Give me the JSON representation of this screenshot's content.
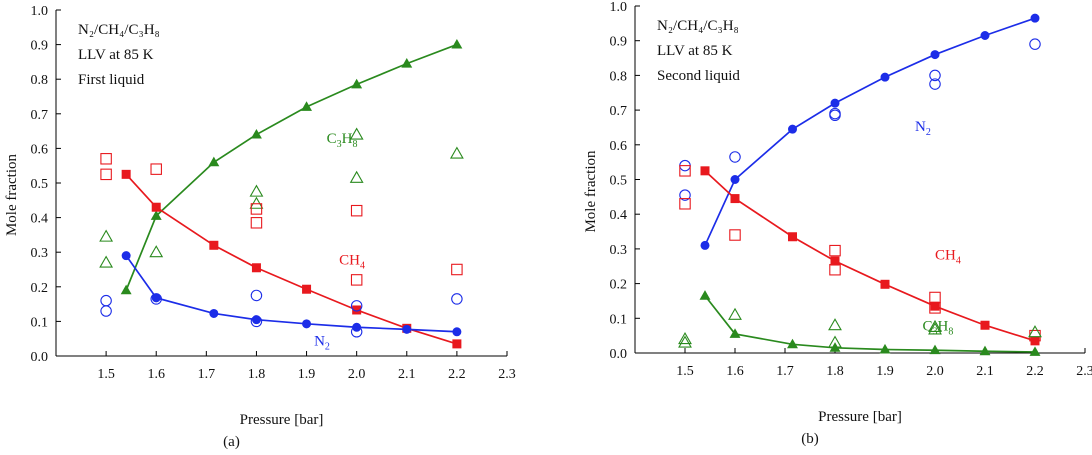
{
  "figure": {
    "panel_labels": [
      "(a)",
      "(b)"
    ]
  },
  "chart_data": [
    {
      "type": "line",
      "panel": "(a)",
      "title_lines": [
        "N₂/CH₄/C₃H₈",
        "LLV at 85 K",
        "First liquid"
      ],
      "xlabel": "Pressure [bar]",
      "ylabel": "Mole fraction",
      "xlim": [
        1.4,
        2.3
      ],
      "ylim": [
        0.0,
        1.0
      ],
      "xticks": [
        1.5,
        1.6,
        1.7,
        1.8,
        1.9,
        2.0,
        2.1,
        2.2,
        2.3
      ],
      "yticks": [
        0.0,
        0.1,
        0.2,
        0.3,
        0.4,
        0.5,
        0.6,
        0.7,
        0.8,
        0.9,
        1.0
      ],
      "series": [
        {
          "name": "C3H8",
          "label_main": "C",
          "label_sub1": "3",
          "label_mid": "H",
          "label_sub2": "8",
          "color": "#2a8a1e",
          "marker": "triangle",
          "x": [
            1.54,
            1.6,
            1.715,
            1.8,
            1.9,
            2.0,
            2.1,
            2.2
          ],
          "y": [
            0.19,
            0.405,
            0.56,
            0.64,
            0.72,
            0.785,
            0.845,
            0.9
          ]
        },
        {
          "name": "CH4",
          "label_main": "CH",
          "label_sub1": "4",
          "color": "#e8191e",
          "marker": "square",
          "x": [
            1.54,
            1.6,
            1.715,
            1.8,
            1.9,
            2.0,
            2.1,
            2.2
          ],
          "y": [
            0.525,
            0.43,
            0.32,
            0.255,
            0.193,
            0.133,
            0.08,
            0.035
          ]
        },
        {
          "name": "N2",
          "label_main": "N",
          "label_sub1": "2",
          "color": "#1c2de8",
          "marker": "circle",
          "x": [
            1.54,
            1.6,
            1.715,
            1.8,
            1.9,
            2.0,
            2.1,
            2.2
          ],
          "y": [
            0.29,
            0.168,
            0.123,
            0.105,
            0.093,
            0.083,
            0.077,
            0.07
          ]
        }
      ],
      "experimental": [
        {
          "name": "C3H8 exp",
          "color": "#2a8a1e",
          "marker": "triangle",
          "x": [
            1.5,
            1.5,
            1.6,
            1.8,
            1.8,
            2.0,
            2.0,
            2.2
          ],
          "y": [
            0.345,
            0.27,
            0.3,
            0.475,
            0.44,
            0.64,
            0.515,
            0.585
          ]
        },
        {
          "name": "CH4 exp",
          "color": "#e8191e",
          "marker": "square",
          "x": [
            1.5,
            1.5,
            1.6,
            1.8,
            1.8,
            2.0,
            2.0,
            2.2
          ],
          "y": [
            0.57,
            0.525,
            0.54,
            0.425,
            0.385,
            0.42,
            0.22,
            0.25
          ]
        },
        {
          "name": "N2 exp",
          "color": "#1c2de8",
          "marker": "circle",
          "x": [
            1.5,
            1.5,
            1.6,
            1.8,
            1.8,
            2.0,
            2.0,
            2.2
          ],
          "y": [
            0.16,
            0.13,
            0.165,
            0.175,
            0.1,
            0.145,
            0.07,
            0.165
          ]
        }
      ],
      "annotations": [
        {
          "series": "C3H8",
          "x": 1.94,
          "y": 0.615
        },
        {
          "series": "CH4",
          "x": 1.965,
          "y": 0.265
        },
        {
          "series": "N2",
          "x": 1.915,
          "y": 0.03
        }
      ]
    },
    {
      "type": "line",
      "panel": "(b)",
      "title_lines": [
        "N₂/CH₄/C₃H₈",
        "LLV at 85 K",
        "Second liquid"
      ],
      "xlabel": "Pressure [bar]",
      "ylabel": "Mole fraction",
      "xlim": [
        1.4,
        2.3
      ],
      "ylim": [
        0.0,
        1.0
      ],
      "xticks": [
        1.5,
        1.6,
        1.7,
        1.8,
        1.9,
        2.0,
        2.1,
        2.2,
        2.3
      ],
      "yticks": [
        0.0,
        0.1,
        0.2,
        0.3,
        0.4,
        0.5,
        0.6,
        0.7,
        0.8,
        0.9,
        1.0
      ],
      "series": [
        {
          "name": "N2",
          "label_main": "N",
          "label_sub1": "2",
          "color": "#1c2de8",
          "marker": "circle",
          "x": [
            1.54,
            1.6,
            1.715,
            1.8,
            1.9,
            2.0,
            2.1,
            2.2
          ],
          "y": [
            0.31,
            0.5,
            0.645,
            0.72,
            0.795,
            0.86,
            0.915,
            0.965
          ]
        },
        {
          "name": "CH4",
          "label_main": "CH",
          "label_sub1": "4",
          "color": "#e8191e",
          "marker": "square",
          "x": [
            1.54,
            1.6,
            1.715,
            1.8,
            1.9,
            2.0,
            2.1,
            2.2
          ],
          "y": [
            0.525,
            0.445,
            0.335,
            0.265,
            0.198,
            0.135,
            0.08,
            0.035
          ]
        },
        {
          "name": "C3H8",
          "label_main": "C",
          "label_sub1": "3",
          "label_mid": "H",
          "label_sub2": "8",
          "color": "#2a8a1e",
          "marker": "triangle",
          "x": [
            1.54,
            1.6,
            1.715,
            1.8,
            1.9,
            2.0,
            2.1,
            2.2
          ],
          "y": [
            0.165,
            0.055,
            0.025,
            0.015,
            0.01,
            0.008,
            0.005,
            0.003
          ]
        }
      ],
      "experimental": [
        {
          "name": "N2 exp",
          "color": "#1c2de8",
          "marker": "circle",
          "x": [
            1.5,
            1.5,
            1.6,
            1.8,
            1.8,
            2.0,
            2.0,
            2.2
          ],
          "y": [
            0.54,
            0.455,
            0.565,
            0.69,
            0.685,
            0.8,
            0.775,
            0.89
          ]
        },
        {
          "name": "CH4 exp",
          "color": "#e8191e",
          "marker": "square",
          "x": [
            1.5,
            1.5,
            1.6,
            1.8,
            1.8,
            2.0,
            2.0,
            2.2
          ],
          "y": [
            0.525,
            0.43,
            0.34,
            0.295,
            0.24,
            0.16,
            0.13,
            0.05
          ]
        },
        {
          "name": "C3H8 exp",
          "color": "#2a8a1e",
          "marker": "triangle",
          "x": [
            1.5,
            1.5,
            1.6,
            1.8,
            1.8,
            2.0,
            2.0,
            2.2
          ],
          "y": [
            0.04,
            0.03,
            0.11,
            0.08,
            0.03,
            0.075,
            0.068,
            0.06
          ]
        }
      ],
      "annotations": [
        {
          "series": "N2",
          "x": 1.96,
          "y": 0.64
        },
        {
          "series": "CH4",
          "x": 2.0,
          "y": 0.27
        },
        {
          "series": "C3H8",
          "x": 1.975,
          "y": 0.065
        }
      ]
    }
  ]
}
